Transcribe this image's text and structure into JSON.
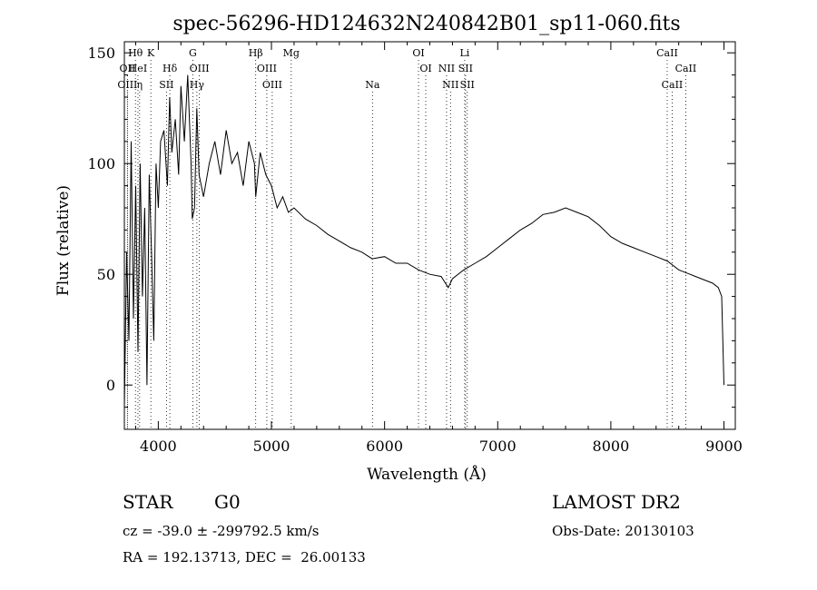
{
  "chart_data": {
    "type": "line",
    "title": "spec-56296-HD124632N240842B01_sp11-060.fits",
    "xlabel": "Wavelength (Å)",
    "ylabel": "Flux (relative)",
    "xlim": [
      3700,
      9100
    ],
    "ylim": [
      -20,
      155
    ],
    "xticks": [
      4000,
      5000,
      6000,
      7000,
      8000,
      9000
    ],
    "yticks": [
      0,
      50,
      100,
      150
    ],
    "grid": false,
    "series": [
      {
        "x": [
          3700,
          3720,
          3740,
          3760,
          3780,
          3800,
          3820,
          3840,
          3860,
          3880,
          3900,
          3920,
          3940,
          3960,
          3980,
          4000,
          4020,
          4050,
          4080,
          4100,
          4120,
          4150,
          4180,
          4200,
          4230,
          4260,
          4290,
          4300,
          4320,
          4340,
          4360,
          4400,
          4450,
          4500,
          4550,
          4600,
          4650,
          4700,
          4750,
          4800,
          4850,
          4861,
          4900,
          4950,
          5000,
          5050,
          5100,
          5150,
          5200,
          5300,
          5400,
          5500,
          5600,
          5700,
          5800,
          5890,
          6000,
          6100,
          6200,
          6300,
          6400,
          6500,
          6563,
          6600,
          6700,
          6800,
          6900,
          7000,
          7100,
          7200,
          7300,
          7400,
          7500,
          7600,
          7700,
          7800,
          7900,
          8000,
          8100,
          8200,
          8300,
          8400,
          8500,
          8600,
          8700,
          8800,
          8900,
          8950,
          8980,
          9000
        ],
        "y": [
          -10,
          60,
          20,
          110,
          30,
          90,
          15,
          100,
          40,
          80,
          0,
          95,
          60,
          20,
          100,
          80,
          110,
          115,
          90,
          130,
          105,
          120,
          95,
          135,
          110,
          140,
          100,
          75,
          80,
          125,
          95,
          85,
          100,
          110,
          95,
          115,
          100,
          105,
          90,
          110,
          100,
          85,
          105,
          95,
          90,
          80,
          85,
          78,
          80,
          75,
          72,
          68,
          65,
          62,
          60,
          57,
          58,
          55,
          55,
          52,
          50,
          49,
          44,
          48,
          52,
          55,
          58,
          62,
          66,
          70,
          73,
          77,
          78,
          80,
          78,
          76,
          72,
          67,
          64,
          62,
          60,
          58,
          56,
          52,
          50,
          48,
          46,
          44,
          40,
          0
        ]
      }
    ],
    "lines": [
      {
        "label": "Hθ",
        "x": 3798,
        "row": 1
      },
      {
        "label": "OII",
        "x": 3727,
        "row": 2
      },
      {
        "label": "OIII",
        "x": 3727,
        "row": 3
      },
      {
        "label": "HeI",
        "x": 3820,
        "row": 2
      },
      {
        "label": "η",
        "x": 3835,
        "row": 3
      },
      {
        "label": "K",
        "x": 3934,
        "row": 1
      },
      {
        "label": "Hδ",
        "x": 4102,
        "row": 2
      },
      {
        "label": "SII",
        "x": 4072,
        "row": 3
      },
      {
        "label": "G",
        "x": 4305,
        "row": 1
      },
      {
        "label": "OIII",
        "x": 4363,
        "row": 2
      },
      {
        "label": "Hγ",
        "x": 4341,
        "row": 3
      },
      {
        "label": "Hβ",
        "x": 4861,
        "row": 1
      },
      {
        "label": "OIII",
        "x": 4959,
        "row": 2
      },
      {
        "label": "OIII",
        "x": 5007,
        "row": 3
      },
      {
        "label": "Mg",
        "x": 5175,
        "row": 1
      },
      {
        "label": "Na",
        "x": 5893,
        "row": 3
      },
      {
        "label": "OI",
        "x": 6300,
        "row": 1
      },
      {
        "label": "OI",
        "x": 6364,
        "row": 2
      },
      {
        "label": "Li",
        "x": 6708,
        "row": 1
      },
      {
        "label": "NII",
        "x": 6548,
        "row": 2
      },
      {
        "label": "NII",
        "x": 6583,
        "row": 3
      },
      {
        "label": "SII",
        "x": 6716,
        "row": 2
      },
      {
        "label": "SII",
        "x": 6731,
        "row": 3
      },
      {
        "label": "CaII",
        "x": 8498,
        "row": 1
      },
      {
        "label": "CaII",
        "x": 8542,
        "row": 3
      },
      {
        "label": "CaII",
        "x": 8662,
        "row": 2
      }
    ]
  },
  "info": {
    "object_type": "STAR",
    "subclass": "G0",
    "survey": "LAMOST DR2",
    "cz": "cz = -39.0 ± -299792.5 km/s",
    "obs_date": "Obs-Date: 20130103",
    "coords": "RA = 192.13713, DEC =  26.00133"
  }
}
